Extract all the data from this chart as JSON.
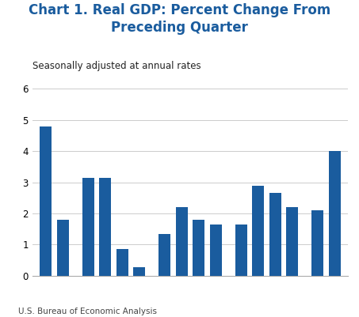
{
  "title": "Chart 1. Real GDP: Percent Change From\nPreceding Quarter",
  "subtitle": "Seasonally adjusted at annual rates",
  "footnote": "U.S. Bureau of Economic Analysis",
  "bar_color": "#1a5c9e",
  "background_color": "#ffffff",
  "values": [
    4.8,
    1.8,
    3.15,
    3.15,
    0.85,
    0.28,
    1.35,
    2.2,
    1.8,
    1.65,
    1.65,
    2.9,
    2.65,
    2.2,
    2.1,
    4.0
  ],
  "ylim": [
    0,
    6
  ],
  "yticks": [
    0,
    1,
    2,
    3,
    4,
    5,
    6
  ],
  "title_color": "#1a5c9e",
  "title_fontsize": 12,
  "subtitle_fontsize": 8.5,
  "footnote_fontsize": 7.5,
  "bar_width": 0.7,
  "grid_color": "#cccccc",
  "spine_color": "#aaaaaa"
}
